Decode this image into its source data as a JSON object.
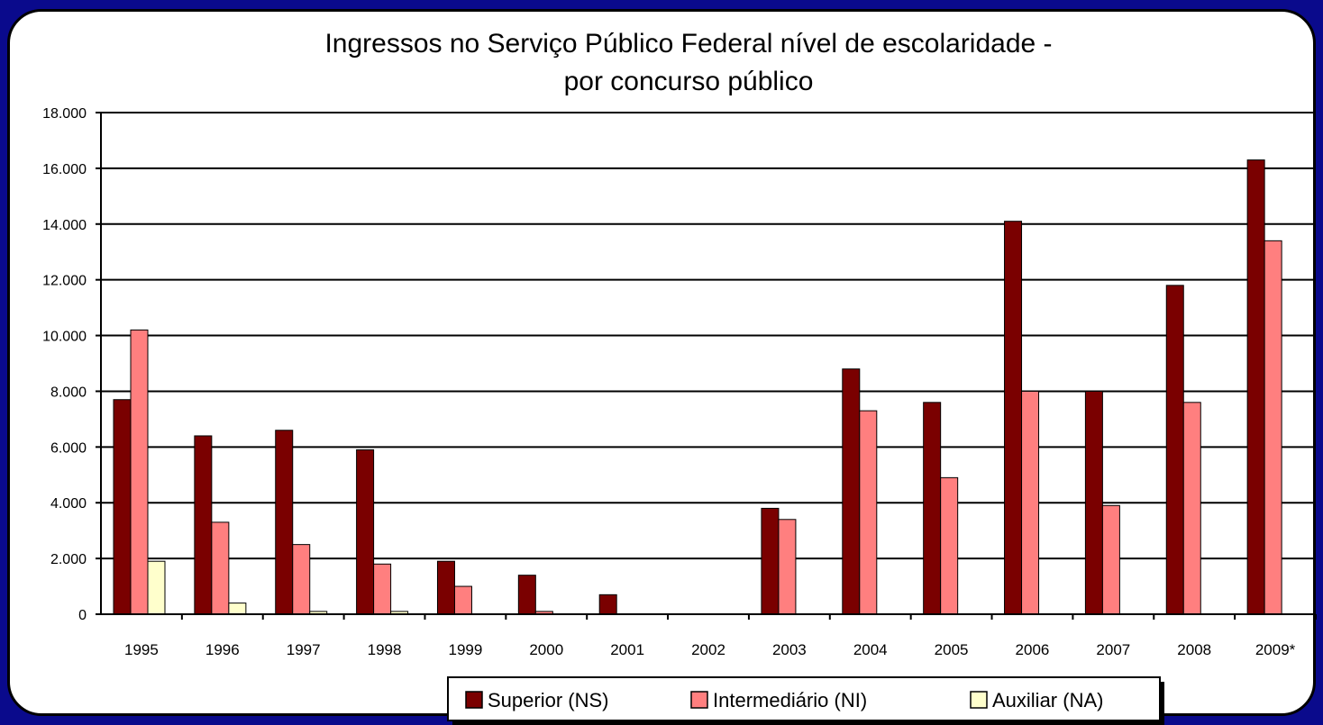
{
  "chart_data": {
    "type": "bar",
    "title_lines": [
      "Ingressos no Serviço Público Federal nível de escolaridade -",
      "por concurso público"
    ],
    "categories": [
      "1995",
      "1996",
      "1997",
      "1998",
      "1999",
      "2000",
      "2001",
      "2002",
      "2003",
      "2004",
      "2005",
      "2006",
      "2007",
      "2008",
      "2009*"
    ],
    "y_tick_labels": [
      "0",
      "2.000",
      "4.000",
      "6.000",
      "8.000",
      "10.000",
      "12.000",
      "14.000",
      "16.000",
      "18.000"
    ],
    "ylim": [
      0,
      18000
    ],
    "y_step": 2000,
    "grid": true,
    "legend_position": "bottom",
    "series": [
      {
        "name": "Superior (NS)",
        "color": "#7a0000",
        "values": [
          7700,
          6400,
          6600,
          5900,
          1900,
          1400,
          700,
          0,
          3800,
          8800,
          7600,
          14100,
          8000,
          11800,
          16300
        ]
      },
      {
        "name": "Intermediário (NI)",
        "color": "#ff7f7f",
        "values": [
          10200,
          3300,
          2500,
          1800,
          1000,
          100,
          0,
          0,
          3400,
          7300,
          4900,
          8000,
          3900,
          7600,
          13400
        ]
      },
      {
        "name": "Auxiliar (NA)",
        "color": "#ffffcc",
        "values": [
          1900,
          400,
          100,
          100,
          0,
          0,
          0,
          0,
          0,
          0,
          0,
          0,
          0,
          0,
          0
        ]
      }
    ]
  }
}
